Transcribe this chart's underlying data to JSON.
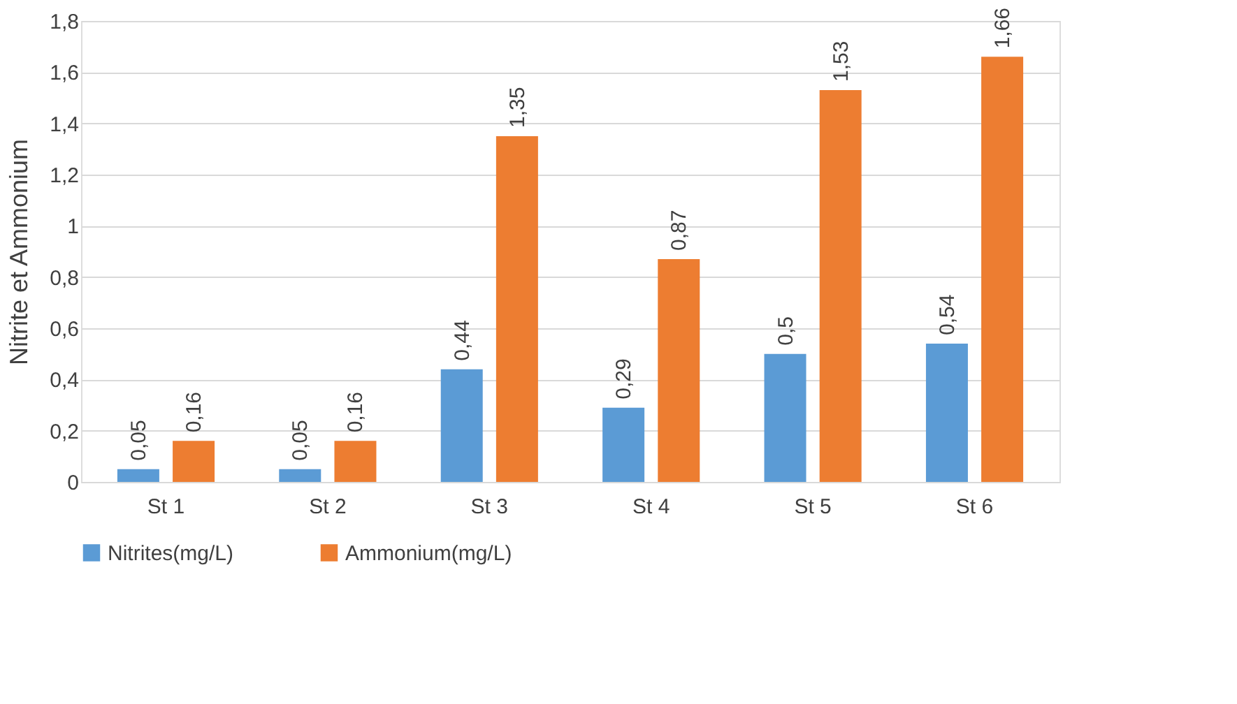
{
  "chart_data": {
    "type": "bar",
    "ylabel": "Nitrite et Ammonium",
    "categories": [
      "St 1",
      "St 2",
      "St 3",
      "St 4",
      "St 5",
      "St 6"
    ],
    "series": [
      {
        "name": "Nitrites(mg/L)",
        "color": "#5b9bd5",
        "values": [
          0.05,
          0.05,
          0.44,
          0.29,
          0.5,
          0.54
        ],
        "value_labels": [
          "0,05",
          "0,05",
          "0,44",
          "0,29",
          "0,5",
          "0,54"
        ]
      },
      {
        "name": "Ammonium(mg/L)",
        "color": "#ed7d31",
        "values": [
          0.16,
          0.16,
          1.35,
          0.87,
          1.53,
          1.66
        ],
        "value_labels": [
          "0,16",
          "0,16",
          "1,35",
          "0,87",
          "1,53",
          "1,66"
        ]
      }
    ],
    "ylim": [
      0,
      1.8
    ],
    "yticks": [
      0,
      {
        "value": 0.2,
        "label": "0,2"
      },
      {
        "value": 0.4,
        "label": "0,4"
      },
      {
        "value": 0.6,
        "label": "0,6"
      },
      {
        "value": 0.8,
        "label": "0,8"
      },
      1,
      {
        "value": 1.2,
        "label": "1,2"
      },
      {
        "value": 1.4,
        "label": "1,4"
      },
      {
        "value": 1.6,
        "label": "1,6"
      },
      {
        "value": 1.8,
        "label": "1,8"
      }
    ],
    "grid": "y",
    "legend": "bottom"
  }
}
